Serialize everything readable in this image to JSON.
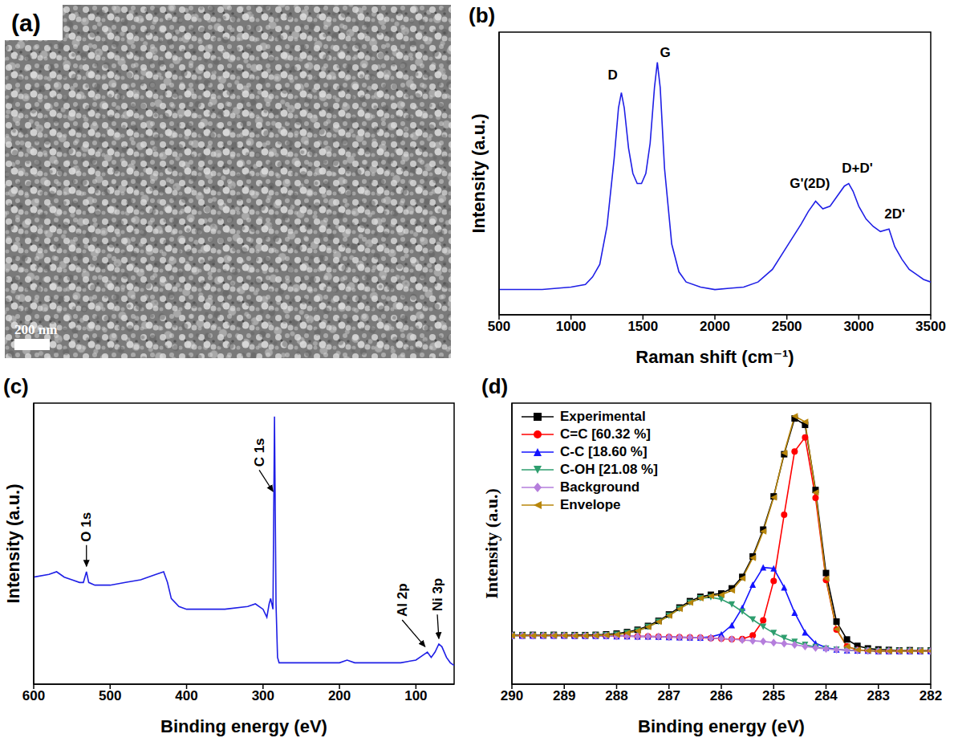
{
  "chart_data": [
    {
      "type": "image",
      "panel_label": "(a)",
      "scale_bar": "200 nm"
    },
    {
      "type": "line",
      "panel_label": "(b)",
      "x_label": "Raman shift (cm⁻¹)",
      "y_label": "Intensity (a.u.)",
      "xlim": [
        500,
        3500
      ],
      "xticks": [
        500,
        1000,
        1500,
        2000,
        2500,
        3000,
        3500
      ],
      "ylim": [
        0,
        112
      ],
      "tick_labels": "x",
      "color": "#1f1fe6",
      "x": [
        500,
        600,
        700,
        800,
        900,
        1000,
        1100,
        1150,
        1200,
        1250,
        1300,
        1330,
        1350,
        1370,
        1400,
        1430,
        1460,
        1490,
        1520,
        1550,
        1580,
        1600,
        1620,
        1650,
        1700,
        1750,
        1800,
        1900,
        2000,
        2100,
        2200,
        2300,
        2400,
        2500,
        2600,
        2650,
        2700,
        2750,
        2800,
        2850,
        2900,
        2930,
        2960,
        3000,
        3050,
        3100,
        3150,
        3210,
        3250,
        3300,
        3350,
        3400,
        3450,
        3500
      ],
      "values": [
        10,
        10,
        10,
        10,
        10.5,
        11,
        12,
        15,
        20,
        35,
        62,
        82,
        88,
        82,
        66,
        56,
        52,
        52,
        56,
        68,
        90,
        100,
        90,
        58,
        28,
        17,
        13,
        11,
        10,
        10.5,
        11,
        13,
        18,
        27,
        36,
        41,
        45,
        42,
        43,
        47,
        51,
        52,
        49,
        43,
        38,
        35,
        33,
        34,
        27,
        22,
        18,
        16,
        14,
        13
      ],
      "annotations": [
        {
          "text": "D",
          "x": 1290,
          "y": 95
        },
        {
          "text": "G",
          "x": 1655,
          "y": 104
        },
        {
          "text": "G'(2D)",
          "x": 2660,
          "y": 52
        },
        {
          "text": "D+D'",
          "x": 2990,
          "y": 58
        },
        {
          "text": "2D'",
          "x": 3250,
          "y": 40
        }
      ]
    },
    {
      "type": "line",
      "panel_label": "(c)",
      "x_label": "Binding energy (eV)",
      "y_label": "Intensity (a.u.)",
      "xlim": [
        600,
        50
      ],
      "xticks": [
        600,
        500,
        400,
        300,
        200,
        100
      ],
      "ylim": [
        0,
        105
      ],
      "tick_labels": "x",
      "color": "#1f1fe6",
      "x": [
        600,
        580,
        570,
        560,
        550,
        540,
        535,
        531,
        528,
        520,
        500,
        480,
        460,
        440,
        430,
        425,
        420,
        410,
        400,
        380,
        350,
        320,
        310,
        300,
        295,
        292,
        290,
        287,
        285,
        283,
        281,
        279,
        250,
        200,
        190,
        180,
        150,
        120,
        100,
        90,
        85,
        80,
        75,
        70,
        66,
        60,
        55,
        50
      ],
      "values": [
        40,
        41,
        42,
        40,
        39,
        38,
        38,
        42,
        38,
        37,
        37,
        38,
        39,
        41,
        42,
        38,
        32,
        29,
        28,
        28,
        28,
        29,
        30,
        28,
        25,
        30,
        32,
        28,
        100,
        30,
        10,
        8,
        8,
        8,
        9,
        8,
        8,
        8,
        9,
        11,
        12,
        10,
        12,
        15,
        14,
        10,
        8,
        7
      ],
      "annotations": [
        {
          "text": "O 1s",
          "x": 531,
          "y": 52,
          "arrow_x": 531,
          "arrow_y": 44
        },
        {
          "text": "C 1s",
          "x": 305,
          "y": 80,
          "arrow_x": 287,
          "arrow_y": 72
        },
        {
          "text": "Al 2p",
          "x": 118,
          "y": 24,
          "arrow_x": 88,
          "arrow_y": 14
        },
        {
          "text": "Ni 3p",
          "x": 72,
          "y": 26,
          "arrow_x": 70,
          "arrow_y": 17
        }
      ]
    },
    {
      "type": "line",
      "panel_label": "(d)",
      "x_label": "Binding energy (eV)",
      "y_label": "Intensity (a.u.)",
      "xlim": [
        290,
        282
      ],
      "xticks": [
        290,
        289,
        288,
        287,
        286,
        285,
        284,
        283,
        282
      ],
      "ylim": [
        0,
        110
      ],
      "tick_labels": "x",
      "legend": "upper left",
      "x": [
        282,
        282.2,
        282.4,
        282.6,
        282.8,
        283,
        283.2,
        283.4,
        283.6,
        283.8,
        284,
        284.2,
        284.4,
        284.6,
        284.8,
        285,
        285.2,
        285.4,
        285.6,
        285.8,
        286,
        286.2,
        286.4,
        286.6,
        286.8,
        287,
        287.2,
        287.4,
        287.6,
        287.8,
        288,
        288.2,
        288.4,
        288.6,
        288.8,
        289,
        289.2,
        289.4,
        289.6,
        289.8,
        290
      ],
      "series": [
        {
          "name": "Experimental",
          "color": "#000000",
          "marker": "square",
          "values": [
            13.2,
            13.1,
            13.3,
            13.2,
            13.4,
            13.6,
            14.0,
            15.0,
            17.5,
            24.5,
            43.5,
            76.0,
            101.5,
            104.0,
            90.0,
            73.5,
            60.5,
            50.0,
            42.0,
            37.5,
            35.5,
            35.0,
            34.2,
            32.5,
            30.0,
            27.3,
            24.8,
            22.8,
            21.3,
            20.4,
            19.8,
            19.5,
            19.3,
            19.2,
            19.2,
            19.2,
            19.3,
            19.2,
            19.3,
            19.2,
            19.3
          ]
        },
        {
          "name": "C=C [60.32 %]",
          "color": "#ff0000",
          "marker": "circle",
          "values": [
            13,
            13,
            13,
            13,
            13,
            13,
            13.1,
            13.4,
            14.8,
            21.4,
            40.8,
            72.9,
            96.6,
            91.1,
            66.3,
            40.4,
            25.0,
            19.1,
            17.7,
            17.6,
            17.8,
            18.0,
            18.2,
            18.3,
            18.4,
            18.5,
            18.6,
            18.7,
            18.7,
            18.8,
            18.8,
            18.9,
            18.9,
            18.9,
            18.9,
            19,
            19,
            19,
            19,
            19,
            19
          ]
        },
        {
          "name": "C-C [18.60 %]",
          "color": "#1414ff",
          "marker": "triangle-up",
          "values": [
            13,
            13,
            13,
            13,
            13,
            13,
            13.1,
            13.2,
            13.3,
            13.6,
            14.3,
            16.0,
            20.3,
            28.0,
            37.9,
            45.3,
            45.7,
            39.0,
            29.9,
            23.1,
            19.6,
            18.5,
            18.2,
            18.3,
            18.4,
            18.5,
            18.6,
            18.7,
            18.7,
            18.8,
            18.8,
            18.9,
            18.9,
            18.9,
            18.9,
            19,
            19,
            19,
            19,
            19,
            19
          ]
        },
        {
          "name": "C-OH [21.08 %]",
          "color": "#2e9e6e",
          "marker": "triangle-down",
          "values": [
            13,
            13,
            13,
            13,
            13,
            13,
            13.1,
            13.2,
            13.3,
            13.5,
            13.9,
            14.5,
            15.4,
            16.6,
            18.1,
            20.0,
            22.5,
            25.3,
            28.4,
            31.2,
            33.2,
            34.0,
            33.6,
            31.9,
            29.5,
            26.8,
            24.4,
            22.4,
            20.9,
            20.0,
            19.4,
            19.2,
            19.0,
            18.9,
            18.9,
            19,
            19,
            19,
            19,
            19,
            19
          ]
        },
        {
          "name": "Background",
          "color": "#b57edc",
          "marker": "diamond",
          "values": [
            13,
            13,
            13,
            13,
            13,
            13,
            13.1,
            13.2,
            13.3,
            13.5,
            13.8,
            14.2,
            14.8,
            15.4,
            15.9,
            16.3,
            16.7,
            17.0,
            17.3,
            17.6,
            17.8,
            18.0,
            18.2,
            18.3,
            18.4,
            18.5,
            18.6,
            18.7,
            18.7,
            18.8,
            18.8,
            18.9,
            18.9,
            18.9,
            18.9,
            19,
            19,
            19,
            19,
            19,
            19
          ]
        },
        {
          "name": "Envelope",
          "color": "#b8860b",
          "marker": "triangle-left",
          "values": [
            13,
            13,
            13,
            13,
            13,
            13,
            13.1,
            13.4,
            14.8,
            21.5,
            41.3,
            75.0,
            102.7,
            104.9,
            90.5,
            73.1,
            59.8,
            49.4,
            41.4,
            36.7,
            35.0,
            34.5,
            33.6,
            31.9,
            29.5,
            26.8,
            24.4,
            22.4,
            20.9,
            20.0,
            19.4,
            19.2,
            19.0,
            18.9,
            18.9,
            19,
            19,
            19,
            19,
            19,
            19
          ]
        }
      ]
    }
  ]
}
